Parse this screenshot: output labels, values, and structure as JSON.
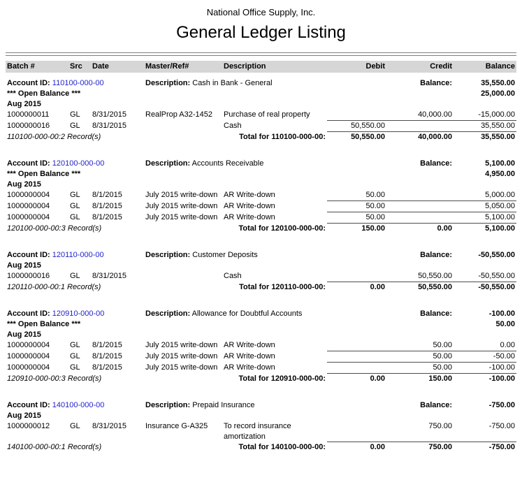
{
  "colors": {
    "account_link": "#2222cc",
    "header_bg": "#d6d6d6"
  },
  "header": {
    "company": "National Office Supply, Inc.",
    "title": "General Ledger Listing"
  },
  "columns": {
    "batch": "Batch #",
    "src": "Src",
    "date": "Date",
    "master": "Master/Ref#",
    "description": "Description",
    "debit": "Debit",
    "credit": "Credit",
    "balance": "Balance"
  },
  "labels": {
    "account_id": "Account ID:",
    "description": "Description:",
    "balance": "Balance:",
    "open_balance": "*** Open Balance ***"
  },
  "sections": [
    {
      "account_id": "110100-000-00",
      "account_description": "Cash in Bank - General",
      "balance": "35,550.00",
      "open_balance": "25,000.00",
      "month": "Aug 2015",
      "rows": [
        {
          "batch": "1000000011",
          "src": "GL",
          "date": "8/31/2015",
          "master": "RealProp A32-1452",
          "description": "Purchase of real property",
          "debit": "",
          "credit": "40,000.00",
          "balance": "-15,000.00"
        },
        {
          "batch": "1000000016",
          "src": "GL",
          "date": "8/31/2015",
          "master": "",
          "description": "Cash",
          "debit": "50,550.00",
          "credit": "",
          "balance": "35,550.00"
        }
      ],
      "records": "110100-000-00:2 Record(s)",
      "total_label": "Total for 110100-000-00:",
      "totals": {
        "debit": "50,550.00",
        "credit": "40,000.00",
        "balance": "35,550.00"
      }
    },
    {
      "account_id": "120100-000-00",
      "account_description": "Accounts Receivable",
      "balance": "5,100.00",
      "open_balance": "4,950.00",
      "month": "Aug 2015",
      "rows": [
        {
          "batch": "1000000004",
          "src": "GL",
          "date": "8/1/2015",
          "master": "July 2015 write-down",
          "description": "AR Write-down",
          "debit": "50.00",
          "credit": "",
          "balance": "5,000.00"
        },
        {
          "batch": "1000000004",
          "src": "GL",
          "date": "8/1/2015",
          "master": "July 2015 write-down",
          "description": "AR Write-down",
          "debit": "50.00",
          "credit": "",
          "balance": "5,050.00"
        },
        {
          "batch": "1000000004",
          "src": "GL",
          "date": "8/1/2015",
          "master": "July 2015 write-down",
          "description": "AR Write-down",
          "debit": "50.00",
          "credit": "",
          "balance": "5,100.00"
        }
      ],
      "records": "120100-000-00:3 Record(s)",
      "total_label": "Total for 120100-000-00:",
      "totals": {
        "debit": "150.00",
        "credit": "0.00",
        "balance": "5,100.00"
      }
    },
    {
      "account_id": "120110-000-00",
      "account_description": "Customer Deposits",
      "balance": "-50,550.00",
      "month": "Aug 2015",
      "rows": [
        {
          "batch": "1000000016",
          "src": "GL",
          "date": "8/31/2015",
          "master": "",
          "description": "Cash",
          "debit": "",
          "credit": "50,550.00",
          "balance": "-50,550.00"
        }
      ],
      "records": "120110-000-00:1 Record(s)",
      "total_label": "Total for 120110-000-00:",
      "totals": {
        "debit": "0.00",
        "credit": "50,550.00",
        "balance": "-50,550.00"
      }
    },
    {
      "account_id": "120910-000-00",
      "account_description": "Allowance for Doubtful Accounts",
      "balance": "-100.00",
      "open_balance": "50.00",
      "month": "Aug 2015",
      "rows": [
        {
          "batch": "1000000004",
          "src": "GL",
          "date": "8/1/2015",
          "master": "July 2015 write-down",
          "description": "AR Write-down",
          "debit": "",
          "credit": "50.00",
          "balance": "0.00"
        },
        {
          "batch": "1000000004",
          "src": "GL",
          "date": "8/1/2015",
          "master": "July 2015 write-down",
          "description": "AR Write-down",
          "debit": "",
          "credit": "50.00",
          "balance": "-50.00"
        },
        {
          "batch": "1000000004",
          "src": "GL",
          "date": "8/1/2015",
          "master": "July 2015 write-down",
          "description": "AR Write-down",
          "debit": "",
          "credit": "50.00",
          "balance": "-100.00"
        }
      ],
      "records": "120910-000-00:3 Record(s)",
      "total_label": "Total for 120910-000-00:",
      "totals": {
        "debit": "0.00",
        "credit": "150.00",
        "balance": "-100.00"
      }
    },
    {
      "account_id": "140100-000-00",
      "account_description": "Prepaid Insurance",
      "balance": "-750.00",
      "month": "Aug 2015",
      "rows": [
        {
          "batch": "1000000012",
          "src": "GL",
          "date": "8/31/2015",
          "master": "Insurance G-A325",
          "description": "To record insurance amortization",
          "debit": "",
          "credit": "750.00",
          "balance": "-750.00"
        }
      ],
      "records": "140100-000-00:1 Record(s)",
      "total_label": "Total for 140100-000-00:",
      "totals": {
        "debit": "0.00",
        "credit": "750.00",
        "balance": "-750.00"
      }
    }
  ]
}
